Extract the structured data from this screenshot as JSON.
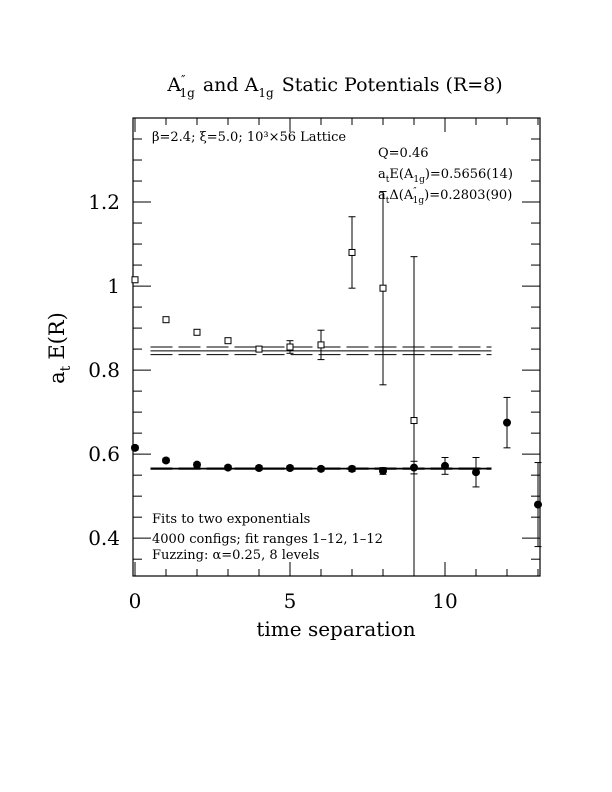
{
  "chart_data": {
    "type": "scatter",
    "title": {
      "main": "A",
      "main_sup": "″",
      "main_sub": "1g",
      "middle": "and A",
      "middle_sub": "1g",
      "tail": "Static Potentials (R=8)"
    },
    "xlabel": "time separation",
    "ylabel": {
      "main": "a",
      "sub": "t",
      "tail": "E(R)"
    },
    "xlim": [
      0,
      13
    ],
    "ylim": [
      0.31,
      1.4
    ],
    "xticks": [
      0,
      5,
      10
    ],
    "yticks": [
      0.4,
      0.6,
      0.8,
      1.0,
      1.2
    ],
    "ytick_labels": [
      "0.4",
      "0.6",
      "0.8",
      "1",
      "1.2"
    ],
    "xtick_labels": [
      "0",
      "5",
      "10"
    ],
    "grid": false,
    "annotations": {
      "params": "β=2.4; ξ=5.0; 10³×56 Lattice",
      "q": "Q=0.46",
      "e_fit": {
        "main": "a",
        "sub": "t",
        "mid": "E(A",
        "sub2": "1g",
        "tail": ")=0.5656(14)"
      },
      "delta_fit": {
        "main": "a",
        "sub": "t",
        "mid": "Δ(A",
        "sup2": "″",
        "sub2": "1g",
        "tail": ")=0.2803(90)"
      },
      "note1": "Fits to two exponentials",
      "note2": "4000 configs; fit ranges 1–12, 1–12",
      "note3": "Fuzzing: α=0.25, 8 levels"
    },
    "series": [
      {
        "marker": "open-square",
        "points": [
          {
            "x": 0,
            "y": 1.015,
            "err": 0.005
          },
          {
            "x": 1,
            "y": 0.92,
            "err": 0.005
          },
          {
            "x": 2,
            "y": 0.89,
            "err": 0.005
          },
          {
            "x": 3,
            "y": 0.87,
            "err": 0.005
          },
          {
            "x": 4,
            "y": 0.85,
            "err": 0.005
          },
          {
            "x": 5,
            "y": 0.855,
            "err": 0.015
          },
          {
            "x": 6,
            "y": 0.86,
            "err": 0.035
          },
          {
            "x": 7,
            "y": 1.08,
            "err": 0.085
          },
          {
            "x": 8,
            "y": 0.995,
            "err": 0.23
          },
          {
            "x": 9,
            "y": 0.68,
            "err": 0.39
          }
        ],
        "fit": {
          "x_range": [
            0.5,
            11.5
          ],
          "center": 0.8459,
          "error": 0.009
        }
      },
      {
        "marker": "filled-circle",
        "points": [
          {
            "x": 0,
            "y": 0.615,
            "err": 0.005
          },
          {
            "x": 1,
            "y": 0.585,
            "err": 0.005
          },
          {
            "x": 2,
            "y": 0.575,
            "err": 0.005
          },
          {
            "x": 3,
            "y": 0.568,
            "err": 0.005
          },
          {
            "x": 4,
            "y": 0.567,
            "err": 0.005
          },
          {
            "x": 5,
            "y": 0.567,
            "err": 0.005
          },
          {
            "x": 6,
            "y": 0.565,
            "err": 0.005
          },
          {
            "x": 7,
            "y": 0.565,
            "err": 0.006
          },
          {
            "x": 8,
            "y": 0.56,
            "err": 0.008
          },
          {
            "x": 9,
            "y": 0.568,
            "err": 0.015
          },
          {
            "x": 10,
            "y": 0.572,
            "err": 0.02
          },
          {
            "x": 11,
            "y": 0.557,
            "err": 0.035
          },
          {
            "x": 12,
            "y": 0.675,
            "err": 0.06
          },
          {
            "x": 13,
            "y": 0.48,
            "err": 0.1
          }
        ],
        "fit": {
          "x_range": [
            0.5,
            11.5
          ],
          "center": 0.5656,
          "error": 0.0014
        }
      }
    ]
  }
}
